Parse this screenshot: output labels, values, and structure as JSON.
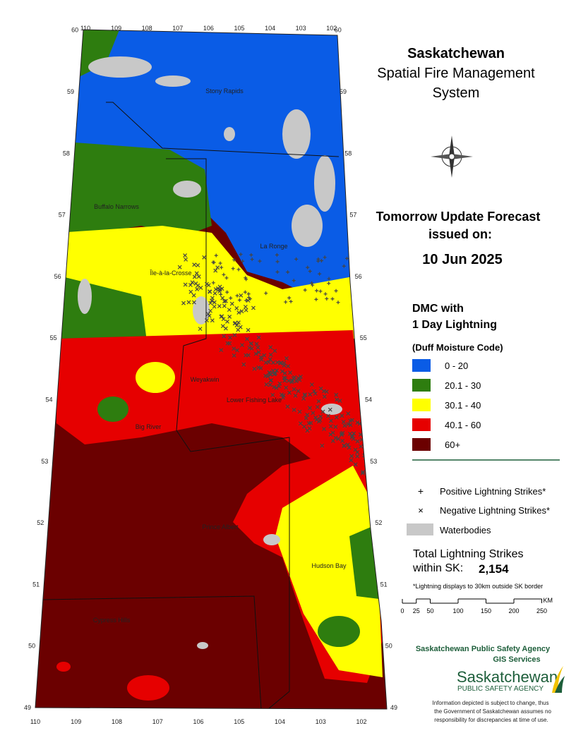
{
  "header": {
    "title": [
      "Saskatchewan",
      "Spatial Fire Management",
      "System"
    ]
  },
  "forecast": {
    "heading": "Tomorrow Update Forecast",
    "issued": "issued on:",
    "date": "10 Jun 2025"
  },
  "legend": {
    "title": [
      "DMC with",
      "1 Day Lightning"
    ],
    "subtitle": "(Duff Moisture Code)",
    "classes": [
      {
        "label": "0 - 20",
        "color": "#0a5ce6"
      },
      {
        "label": "20.1 - 30",
        "color": "#2e7d0f"
      },
      {
        "label": "30.1 - 40",
        "color": "#ffff00"
      },
      {
        "label": "40.1 - 60",
        "color": "#e60000"
      },
      {
        "label": "60+",
        "color": "#6b0000"
      }
    ]
  },
  "symbols": {
    "positive": "Positive Lightning Strikes*",
    "negative": "Negative Lightning Strikes*",
    "water": "Waterbodies"
  },
  "total": {
    "label": [
      "Total Lightning Strikes",
      "within SK:"
    ],
    "value": "2,154"
  },
  "note": "*Lightning displays to 30km outside SK border",
  "scale": {
    "ticks": [
      0,
      25,
      50,
      100,
      150,
      200,
      250
    ],
    "unit": "KM"
  },
  "agency": {
    "name": "Saskatchewan Public Safety Agency",
    "unit": "GIS  Services",
    "logo": [
      "Saskatchewan",
      "PUBLIC SAFETY AGENCY"
    ]
  },
  "disclaimer": [
    "Information depicted is subject to change, thus",
    "the Government of Saskatchewan assumes no",
    "responsibility for discrepancies at time of use."
  ],
  "map": {
    "longitudes": [
      110,
      109,
      108,
      107,
      106,
      105,
      104,
      103,
      102
    ],
    "latitudes": [
      49,
      50,
      51,
      52,
      53,
      54,
      55,
      56,
      57,
      58,
      59,
      60
    ],
    "places": [
      "Stony Rapids",
      "Buffalo Narrows",
      "La Ronge",
      "Île-à-la-Crosse",
      "Weyakwin",
      "Lower Fishing Lake",
      "Big River",
      "Prince Albert",
      "Hudson Bay",
      "Cypress Hills"
    ]
  }
}
